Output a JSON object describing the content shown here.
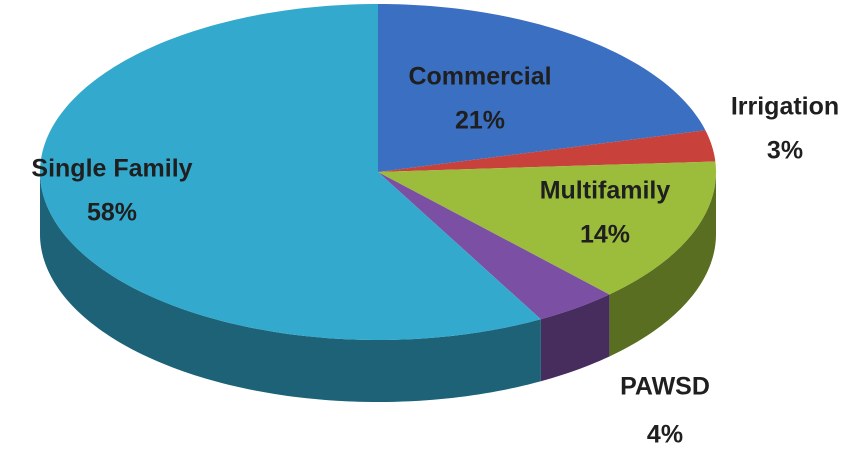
{
  "chart_data": {
    "type": "pie",
    "categories": [
      "Commercial",
      "Irrigation",
      "Multifamily",
      "PAWSD",
      "Single Family"
    ],
    "values": [
      21,
      3,
      14,
      4,
      58
    ],
    "value_labels": [
      "21%",
      "3%",
      "14%",
      "4%",
      "58%"
    ],
    "colors": [
      "#3b6fc1",
      "#c8413a",
      "#9cbd3c",
      "#7b4fa3",
      "#33aacd"
    ]
  }
}
